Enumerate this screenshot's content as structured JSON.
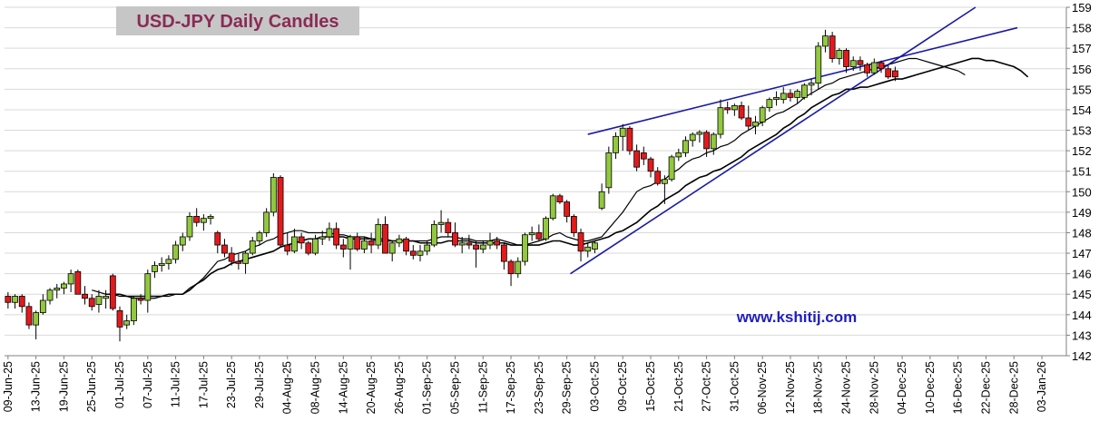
{
  "chart_data": {
    "type": "candlestick",
    "title": "USD-JPY Daily Candles",
    "watermark": "www.kshitij.com",
    "categories": [
      "09-Jun-25",
      null,
      null,
      null,
      "13-Jun-25",
      null,
      null,
      null,
      "19-Jun-25",
      null,
      null,
      null,
      "25-Jun-25",
      null,
      null,
      null,
      "01-Jul-25",
      null,
      null,
      null,
      "07-Jul-25",
      null,
      null,
      null,
      "11-Jul-25",
      null,
      null,
      null,
      "17-Jul-25",
      null,
      null,
      null,
      "23-Jul-25",
      null,
      null,
      null,
      "29-Jul-25",
      null,
      null,
      null,
      "04-Aug-25",
      null,
      null,
      null,
      "08-Aug-25",
      null,
      null,
      null,
      "14-Aug-25",
      null,
      null,
      null,
      "20-Aug-25",
      null,
      null,
      null,
      "26-Aug-25",
      null,
      null,
      null,
      "01-Sep-25",
      null,
      null,
      null,
      "05-Sep-25",
      null,
      null,
      null,
      "11-Sep-25",
      null,
      null,
      null,
      "17-Sep-25",
      null,
      null,
      null,
      "23-Sep-25",
      null,
      null,
      null,
      "29-Sep-25",
      null,
      null,
      null,
      "03-Oct-25",
      null,
      null,
      null,
      "09-Oct-25",
      null,
      null,
      null,
      "15-Oct-25",
      null,
      null,
      null,
      "21-Oct-25",
      null,
      null,
      null,
      "27-Oct-25",
      null,
      null,
      null,
      "31-Oct-25",
      null,
      null,
      null,
      "06-Nov-25",
      null,
      null,
      null,
      "12-Nov-25",
      null,
      null,
      null,
      "18-Nov-25",
      null,
      null,
      null,
      "24-Nov-25",
      null,
      null,
      null,
      "28-Nov-25",
      null,
      null,
      null,
      "04-Dec-25",
      null,
      null,
      null,
      "10-Dec-25",
      null,
      null,
      null,
      "16-Dec-25",
      null,
      null,
      null,
      "22-Dec-25",
      null,
      null,
      null,
      "28-Dec-25",
      null,
      null,
      null,
      "03-Jan-26",
      null,
      null,
      null
    ],
    "ohlc": [
      [
        144.9,
        145.1,
        144.3,
        144.6
      ],
      [
        144.6,
        145.0,
        144.3,
        144.9
      ],
      [
        144.9,
        145.0,
        144.1,
        144.4
      ],
      [
        144.4,
        144.6,
        143.3,
        143.5
      ],
      [
        143.5,
        144.2,
        142.8,
        144.1
      ],
      [
        144.1,
        145.0,
        144.0,
        144.7
      ],
      [
        144.7,
        145.3,
        144.5,
        145.2
      ],
      [
        145.2,
        145.5,
        144.8,
        145.3
      ],
      [
        145.3,
        145.6,
        145.0,
        145.5
      ],
      [
        145.5,
        146.2,
        145.1,
        146.0
      ],
      [
        146.1,
        146.2,
        145.0,
        145.0
      ],
      [
        145.0,
        145.4,
        144.5,
        144.8
      ],
      [
        144.8,
        145.0,
        144.2,
        144.4
      ],
      [
        144.5,
        145.2,
        144.1,
        144.9
      ],
      [
        144.8,
        145.2,
        144.3,
        144.9
      ],
      [
        145.9,
        146.0,
        144.2,
        144.3
      ],
      [
        144.2,
        144.4,
        142.7,
        143.4
      ],
      [
        143.5,
        144.0,
        143.3,
        143.7
      ],
      [
        143.7,
        144.9,
        143.5,
        144.8
      ],
      [
        144.8,
        145.0,
        144.5,
        144.7
      ],
      [
        144.7,
        146.2,
        144.1,
        146.0
      ],
      [
        146.1,
        146.6,
        145.8,
        146.4
      ],
      [
        146.4,
        146.8,
        146.1,
        146.5
      ],
      [
        146.5,
        146.9,
        146.2,
        146.7
      ],
      [
        146.7,
        147.6,
        146.5,
        147.4
      ],
      [
        147.4,
        148.0,
        147.1,
        147.8
      ],
      [
        147.8,
        149.0,
        147.6,
        148.8
      ],
      [
        148.8,
        149.2,
        148.3,
        148.5
      ],
      [
        148.5,
        148.9,
        148.1,
        148.7
      ],
      [
        148.7,
        148.9,
        148.4,
        148.8
      ],
      [
        148.0,
        148.1,
        147.0,
        147.4
      ],
      [
        147.4,
        147.7,
        146.8,
        147.0
      ],
      [
        147.0,
        147.3,
        146.4,
        146.6
      ],
      [
        146.6,
        147.0,
        146.2,
        146.5
      ],
      [
        146.5,
        147.1,
        146.0,
        147.0
      ],
      [
        147.0,
        147.8,
        146.9,
        147.6
      ],
      [
        147.6,
        148.1,
        147.4,
        148.0
      ],
      [
        148.0,
        149.2,
        147.8,
        149.0
      ],
      [
        149.0,
        150.9,
        148.8,
        150.7
      ],
      [
        150.7,
        150.8,
        147.3,
        147.4
      ],
      [
        147.4,
        148.0,
        146.9,
        147.1
      ],
      [
        147.1,
        148.2,
        147.0,
        147.8
      ],
      [
        147.8,
        148.0,
        147.2,
        147.5
      ],
      [
        147.5,
        147.6,
        146.9,
        147.0
      ],
      [
        147.0,
        147.9,
        146.9,
        147.7
      ],
      [
        147.7,
        148.1,
        147.4,
        147.8
      ],
      [
        147.8,
        148.5,
        147.6,
        148.2
      ],
      [
        148.2,
        148.5,
        147.2,
        147.4
      ],
      [
        147.4,
        147.7,
        146.8,
        147.2
      ],
      [
        147.2,
        147.9,
        146.2,
        147.8
      ],
      [
        147.8,
        148.0,
        147.1,
        147.2
      ],
      [
        147.2,
        147.8,
        147.0,
        147.6
      ],
      [
        147.6,
        148.0,
        147.0,
        147.4
      ],
      [
        147.4,
        148.7,
        147.2,
        148.4
      ],
      [
        148.4,
        148.8,
        147.0,
        147.0
      ],
      [
        147.0,
        147.6,
        146.6,
        147.5
      ],
      [
        147.5,
        147.9,
        147.3,
        147.7
      ],
      [
        147.7,
        147.8,
        146.9,
        147.1
      ],
      [
        147.1,
        147.4,
        146.7,
        146.9
      ],
      [
        146.9,
        147.4,
        146.6,
        147.1
      ],
      [
        147.1,
        147.6,
        146.9,
        147.4
      ],
      [
        147.4,
        148.6,
        147.3,
        148.4
      ],
      [
        148.4,
        149.1,
        148.0,
        148.5
      ],
      [
        148.5,
        148.7,
        147.8,
        148.0
      ],
      [
        148.0,
        148.5,
        147.3,
        147.4
      ],
      [
        147.4,
        147.8,
        147.0,
        147.5
      ],
      [
        147.5,
        147.9,
        147.2,
        147.4
      ],
      [
        147.4,
        147.6,
        146.3,
        147.2
      ],
      [
        147.2,
        147.6,
        147.0,
        147.4
      ],
      [
        147.4,
        148.0,
        147.2,
        147.6
      ],
      [
        147.6,
        147.8,
        147.2,
        147.4
      ],
      [
        147.4,
        147.5,
        146.2,
        146.6
      ],
      [
        146.6,
        146.7,
        145.4,
        146.0
      ],
      [
        146.0,
        146.8,
        145.8,
        146.6
      ],
      [
        146.6,
        148.0,
        146.4,
        147.9
      ],
      [
        147.9,
        148.3,
        147.6,
        148.0
      ],
      [
        148.0,
        148.4,
        147.6,
        147.7
      ],
      [
        147.7,
        148.8,
        147.6,
        148.7
      ],
      [
        148.7,
        149.9,
        148.6,
        149.8
      ],
      [
        149.8,
        149.9,
        149.4,
        149.5
      ],
      [
        149.5,
        149.6,
        148.5,
        148.8
      ],
      [
        148.8,
        148.9,
        147.8,
        148.0
      ],
      [
        148.0,
        148.2,
        146.6,
        147.1
      ],
      [
        147.1,
        147.5,
        146.8,
        147.3
      ],
      [
        147.2,
        147.6,
        147.0,
        147.5
      ],
      [
        149.2,
        150.4,
        149.1,
        150.0
      ],
      [
        150.2,
        152.2,
        149.9,
        151.9
      ],
      [
        151.9,
        152.9,
        151.6,
        152.7
      ],
      [
        152.7,
        153.3,
        152.0,
        153.1
      ],
      [
        153.1,
        153.2,
        151.8,
        152.0
      ],
      [
        152.0,
        152.3,
        151.0,
        151.2
      ],
      [
        151.9,
        152.2,
        151.3,
        151.6
      ],
      [
        151.6,
        151.7,
        150.7,
        151.0
      ],
      [
        151.0,
        151.2,
        150.3,
        150.4
      ],
      [
        150.4,
        150.8,
        149.4,
        150.6
      ],
      [
        150.6,
        151.8,
        150.5,
        151.7
      ],
      [
        151.7,
        152.1,
        151.5,
        151.9
      ],
      [
        151.9,
        152.7,
        151.7,
        152.5
      ],
      [
        152.5,
        152.9,
        152.2,
        152.8
      ],
      [
        152.8,
        153.0,
        152.4,
        152.9
      ],
      [
        152.9,
        153.0,
        151.7,
        152.1
      ],
      [
        152.1,
        152.9,
        151.8,
        152.8
      ],
      [
        152.8,
        154.5,
        152.6,
        154.1
      ],
      [
        154.1,
        154.4,
        153.8,
        154.0
      ],
      [
        154.0,
        154.3,
        153.7,
        154.2
      ],
      [
        154.2,
        154.4,
        153.5,
        153.6
      ],
      [
        153.6,
        154.2,
        153.0,
        153.2
      ],
      [
        153.2,
        153.7,
        152.8,
        153.4
      ],
      [
        153.4,
        154.2,
        153.2,
        154.1
      ],
      [
        154.1,
        154.6,
        153.9,
        154.5
      ],
      [
        154.5,
        154.9,
        154.2,
        154.6
      ],
      [
        154.5,
        155.1,
        154.3,
        154.8
      ],
      [
        154.8,
        155.0,
        154.4,
        154.6
      ],
      [
        154.6,
        155.0,
        154.3,
        154.9
      ],
      [
        154.6,
        155.3,
        154.5,
        155.2
      ],
      [
        155.2,
        155.5,
        154.7,
        155.3
      ],
      [
        155.3,
        157.3,
        155.0,
        157.1
      ],
      [
        157.1,
        157.9,
        156.8,
        157.6
      ],
      [
        157.6,
        157.8,
        156.3,
        156.5
      ],
      [
        156.5,
        157.0,
        156.2,
        156.9
      ],
      [
        156.9,
        157.0,
        155.8,
        156.1
      ],
      [
        156.1,
        156.6,
        155.9,
        156.4
      ],
      [
        156.4,
        156.6,
        155.9,
        156.2
      ],
      [
        156.2,
        156.3,
        155.6,
        155.8
      ],
      [
        155.8,
        156.5,
        155.7,
        156.3
      ],
      [
        156.3,
        156.4,
        155.8,
        156.0
      ],
      [
        156.0,
        156.2,
        155.5,
        155.6
      ],
      [
        155.9,
        156.1,
        155.4,
        155.6
      ],
      null,
      null,
      null,
      null,
      null,
      null,
      null,
      null,
      null,
      null,
      null,
      null,
      null,
      null,
      null,
      null,
      null,
      null,
      null,
      null,
      null,
      null,
      null,
      null
    ],
    "up_color": "#92c83e",
    "down_color": "#e31a1c",
    "series": [
      {
        "color": "#000000",
        "values": [
          null,
          null,
          null,
          null,
          null,
          null,
          null,
          null,
          null,
          null,
          null,
          null,
          145.2,
          145.1,
          145.0,
          145.0,
          144.9,
          144.9,
          144.8,
          144.8,
          144.8,
          144.8,
          144.9,
          144.9,
          145.0,
          145.0,
          145.3,
          145.5,
          145.8,
          146.2,
          146.6,
          146.7,
          146.9,
          147.0,
          147.1,
          147.3,
          147.4,
          147.6,
          147.7,
          147.9,
          148.0,
          148.1,
          148.1,
          148.0,
          148.0,
          148.0,
          148.0,
          147.9,
          147.9,
          147.8,
          147.8,
          147.8,
          147.7,
          147.7,
          147.7,
          147.6,
          147.6,
          147.6,
          147.6,
          147.6,
          147.6,
          147.7,
          147.8,
          147.8,
          147.8,
          147.7,
          147.7,
          147.6,
          147.6,
          147.6,
          147.7,
          147.6,
          147.5,
          147.4,
          147.4,
          147.5,
          147.6,
          147.7,
          147.9,
          148.0,
          147.8,
          147.7,
          147.6,
          147.6,
          147.7,
          147.8,
          148.2,
          148.6,
          149.0,
          149.5,
          150.0,
          150.2,
          150.3,
          150.5,
          150.6,
          150.9,
          151.1,
          151.4,
          151.6,
          151.7,
          151.9,
          152.0,
          152.2,
          152.3,
          152.5,
          152.8,
          153.0,
          153.2,
          153.4,
          153.6,
          153.8,
          153.9,
          154.1,
          154.3,
          154.6,
          154.8,
          155.0,
          155.2,
          155.3,
          155.5,
          155.6,
          155.7,
          155.8,
          155.9,
          156.0,
          156.1,
          156.2,
          156.3,
          156.4,
          156.5,
          156.5,
          156.4,
          156.3,
          156.2,
          156.1,
          156.0,
          155.9,
          155.7,
          null,
          null,
          null,
          null,
          null,
          null,
          null,
          null,
          null,
          null,
          null,
          null,
          null,
          null
        ]
      },
      {
        "color": "#000000",
        "values": [
          null,
          null,
          null,
          null,
          null,
          null,
          null,
          null,
          null,
          null,
          null,
          null,
          null,
          null,
          145.0,
          145.0,
          145.0,
          144.9,
          144.9,
          144.9,
          144.9,
          144.9,
          144.9,
          145.0,
          145.0,
          145.0,
          145.2,
          145.5,
          145.7,
          146.0,
          146.2,
          146.3,
          146.5,
          146.6,
          146.7,
          146.8,
          146.9,
          147.0,
          147.1,
          147.3,
          147.4,
          147.5,
          147.6,
          147.7,
          147.7,
          147.8,
          147.8,
          147.8,
          147.8,
          147.7,
          147.7,
          147.7,
          147.7,
          147.6,
          147.6,
          147.6,
          147.6,
          147.6,
          147.6,
          147.5,
          147.5,
          147.5,
          147.5,
          147.6,
          147.6,
          147.6,
          147.6,
          147.5,
          147.5,
          147.5,
          147.5,
          147.5,
          147.4,
          147.4,
          147.4,
          147.4,
          147.4,
          147.5,
          147.6,
          147.6,
          147.5,
          147.4,
          147.4,
          147.5,
          147.6,
          147.7,
          147.8,
          148.0,
          148.1,
          148.3,
          148.5,
          148.8,
          149.1,
          149.3,
          149.6,
          149.8,
          150.0,
          150.3,
          150.5,
          150.7,
          150.8,
          151.0,
          151.1,
          151.3,
          151.5,
          151.7,
          152.0,
          152.2,
          152.4,
          152.6,
          152.8,
          153.1,
          153.3,
          153.6,
          153.8,
          154.1,
          154.3,
          154.5,
          154.7,
          154.8,
          155.0,
          155.0,
          155.1,
          155.1,
          155.2,
          155.3,
          155.4,
          155.5,
          155.5,
          155.6,
          155.7,
          155.8,
          155.9,
          156.0,
          156.1,
          156.2,
          156.3,
          156.4,
          156.5,
          156.5,
          156.4,
          156.4,
          156.3,
          156.2,
          156.1,
          155.9,
          155.6,
          null,
          null,
          null,
          null,
          null
        ]
      }
    ],
    "trend_color": "#1a1aa6",
    "trend_lines": [
      {
        "x": [
          80.5,
          138.5
        ],
        "y": [
          146.0,
          159.0
        ]
      },
      {
        "x": [
          83,
          144.5
        ],
        "y": [
          152.8,
          158.0
        ]
      }
    ],
    "ylim": [
      142,
      159
    ],
    "yticks": [
      142,
      143,
      144,
      145,
      146,
      147,
      148,
      149,
      150,
      151,
      152,
      153,
      154,
      155,
      156,
      157,
      158,
      159
    ],
    "grid": true
  }
}
